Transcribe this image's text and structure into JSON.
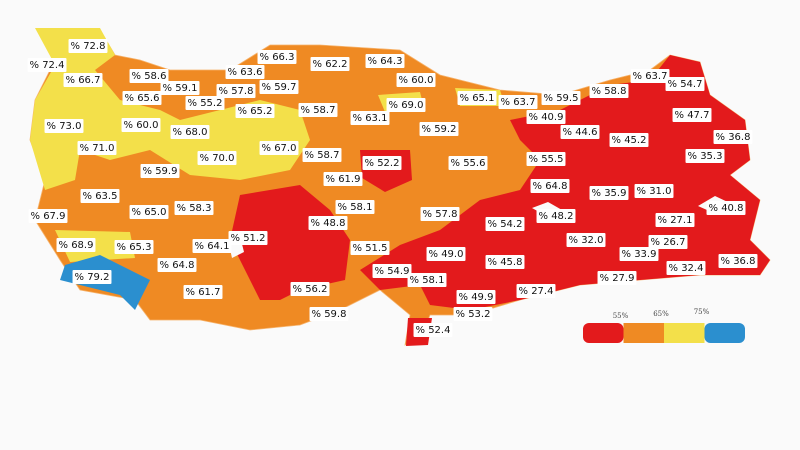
{
  "provinces": [
    "% 72.8",
    "% 72.4",
    "% 66.7",
    "% 58.6",
    "% 66.3",
    "% 62.2",
    "% 64.3",
    "% 63.6",
    "% 60.0",
    "% 65.6",
    "% 59.1",
    "% 57.8",
    "% 59.7",
    "% 55.2",
    "% 65.2",
    "% 58.7",
    "% 69.0",
    "% 65.1",
    "% 63.7",
    "% 59.5",
    "% 58.8",
    "% 63.7",
    "% 54.7",
    "% 73.0",
    "% 60.0",
    "% 68.0",
    "% 63.1",
    "% 59.2",
    "% 40.9",
    "% 44.6",
    "% 45.2",
    "% 47.7",
    "% 36.8",
    "% 71.0",
    "% 70.0",
    "% 67.0",
    "% 58.7",
    "% 52.2",
    "% 55.6",
    "% 55.5",
    "% 35.3",
    "% 59.9",
    "% 61.9",
    "% 64.8",
    "% 35.9",
    "% 31.0",
    "% 63.5",
    "% 65.0",
    "% 58.3",
    "% 58.1",
    "% 57.8",
    "% 48.2",
    "% 40.8",
    "% 67.9",
    "% 54.2",
    "% 27.1",
    "% 48.8",
    "% 51.2",
    "% 64.1",
    "% 51.5",
    "% 49.0",
    "% 32.0",
    "% 26.7",
    "% 68.9",
    "% 65.3",
    "% 33.9",
    "% 36.8",
    "% 45.8",
    "% 32.4",
    "% 79.2",
    "% 64.8",
    "% 54.9",
    "% 58.1",
    "% 27.9",
    "% 56.2",
    "% 27.4",
    "% 61.7",
    "% 49.9",
    "% 59.8",
    "% 53.2",
    "% 52.4"
  ],
  "legend": {
    "labels": [
      "55%",
      "65%",
      "75%"
    ],
    "colors": [
      "#e31a1c",
      "#ef8a23",
      "#f3e04a",
      "#2b8fcf"
    ]
  }
}
